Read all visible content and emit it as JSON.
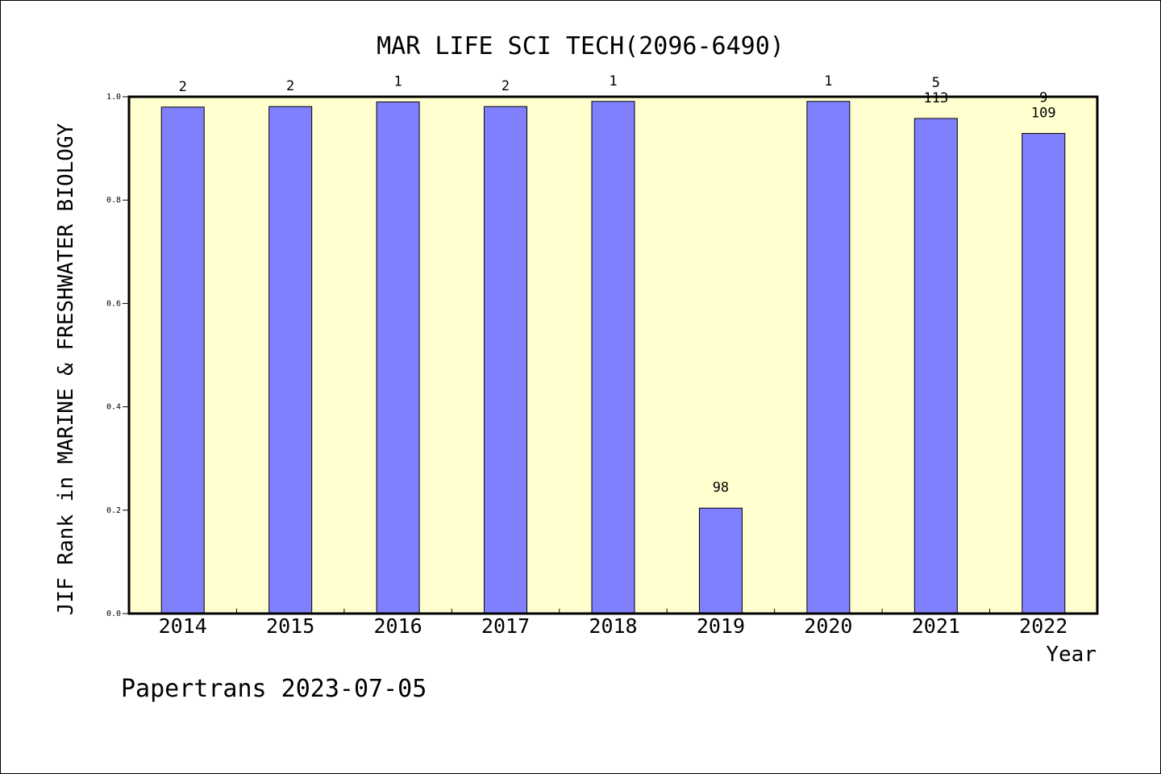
{
  "chart_data": {
    "type": "bar",
    "title": "MAR LIFE SCI TECH(2096-6490)",
    "xlabel": "Year",
    "ylabel": "JIF Rank in MARINE & FRESHWATER BIOLOGY",
    "categories": [
      "2014",
      "2015",
      "2016",
      "2017",
      "2018",
      "2019",
      "2020",
      "2021",
      "2022"
    ],
    "values": [
      0.98,
      0.981,
      0.99,
      0.981,
      0.991,
      0.204,
      0.991,
      0.958,
      0.929
    ],
    "bar_labels": [
      [
        "2"
      ],
      [
        "2"
      ],
      [
        "1"
      ],
      [
        "2"
      ],
      [
        "1"
      ],
      [
        "98"
      ],
      [
        "1"
      ],
      [
        "5",
        "113"
      ],
      [
        "9",
        "109"
      ]
    ],
    "ylim": [
      0,
      1.0
    ],
    "yticks": [
      "0.0",
      "0.2",
      "0.4",
      "0.6",
      "0.8",
      "1.0"
    ],
    "grid": false,
    "legend": "none",
    "colors": {
      "plot_background": "#ffffd0",
      "bar_fill": "#8080ff",
      "bar_stroke": "#000000"
    }
  },
  "footer": {
    "text": "Papertrans 2023-07-05"
  }
}
